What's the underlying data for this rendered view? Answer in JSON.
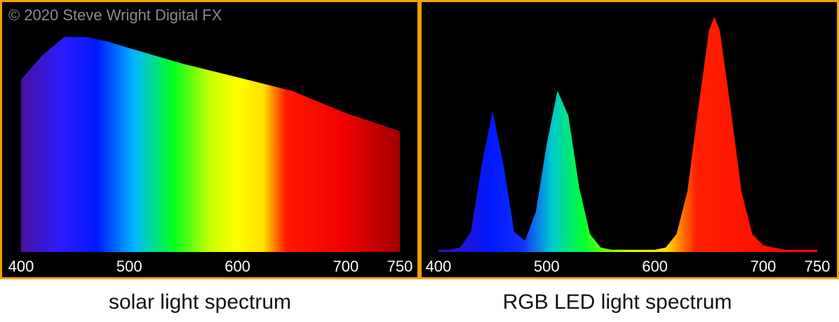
{
  "chart_data": [
    {
      "type": "area",
      "title": "solar light spectrum",
      "annotation": "© 2020 Steve Wright Digital FX",
      "x": [
        400,
        420,
        440,
        460,
        480,
        500,
        550,
        600,
        650,
        700,
        750
      ],
      "values": [
        77,
        88,
        96,
        96,
        94,
        91,
        84,
        78,
        72,
        62,
        54
      ],
      "xlim": [
        400,
        750
      ],
      "xticks": [
        400,
        500,
        600,
        700,
        750
      ],
      "ylim": [
        0,
        110
      ]
    },
    {
      "type": "area",
      "title": "RGB LED light spectrum",
      "x": [
        400,
        410,
        420,
        430,
        440,
        450,
        460,
        470,
        480,
        490,
        500,
        510,
        520,
        530,
        540,
        550,
        560,
        570,
        580,
        590,
        600,
        610,
        620,
        630,
        640,
        650,
        655,
        660,
        670,
        680,
        690,
        700,
        710,
        720,
        730,
        740,
        750
      ],
      "values": [
        1,
        1,
        2,
        9,
        39,
        63,
        39,
        9,
        5,
        18,
        48,
        72,
        61,
        29,
        8,
        2,
        1,
        1,
        1,
        1,
        1,
        2,
        8,
        27,
        64,
        99,
        105,
        99,
        64,
        27,
        8,
        3,
        2,
        1,
        1,
        1,
        1
      ],
      "xlim": [
        400,
        750
      ],
      "xticks": [
        400,
        500,
        600,
        700,
        750
      ],
      "ylim": [
        0,
        110
      ]
    }
  ]
}
